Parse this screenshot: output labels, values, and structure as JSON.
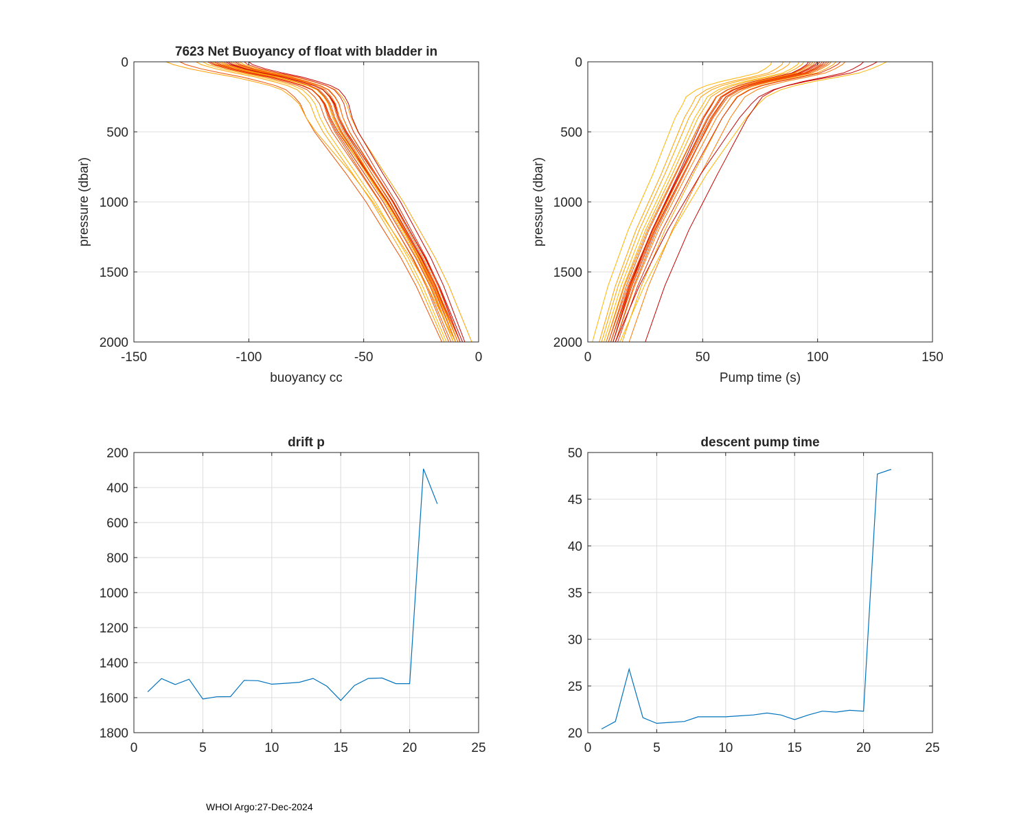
{
  "footer_text": "WHOI Argo:27-Dec-2024",
  "colors": {
    "series": "#0072bd",
    "profiles": [
      "#c80000",
      "#e62800",
      "#f05000",
      "#ff7800",
      "#ffa000",
      "#ffb400"
    ],
    "grid": "#dcdcdc",
    "axis": "#262626"
  },
  "chart_data": [
    {
      "id": "buoyancy",
      "type": "line",
      "title": "7623 Net Buoyancy of float with bladder in",
      "xlabel": "buoyancy cc",
      "ylabel": "pressure (dbar)",
      "xlim": [
        -150,
        0
      ],
      "ylim": [
        0,
        2000
      ],
      "y_reversed": true,
      "xticks": [
        -150,
        -100,
        -50,
        0
      ],
      "xtick_labels": [
        "-150",
        "-100",
        "-50",
        "0"
      ],
      "yticks": [
        0,
        500,
        1000,
        1500,
        2000
      ],
      "ytick_labels": [
        "0",
        "500",
        "1000",
        "1500",
        "2000"
      ],
      "grid": true,
      "pressure": [
        0,
        20,
        50,
        80,
        110,
        140,
        170,
        200,
        250,
        300,
        400,
        500,
        600,
        700,
        800,
        1000,
        1200,
        1400,
        1600,
        1800,
        2000
      ],
      "base_x": [
        -112,
        -110,
        -104,
        -96,
        -87,
        -80,
        -74,
        -70,
        -67,
        -65,
        -63,
        -60,
        -56,
        -52,
        -48,
        -40,
        -33,
        -26,
        -20,
        -15,
        -10
      ],
      "profiles": [
        {
          "dx": 0,
          "deep_dx": 0,
          "color_index": 0
        },
        {
          "dx": 3,
          "deep_dx": 1,
          "color_index": 0
        },
        {
          "dx": -3,
          "deep_dx": -1,
          "color_index": 1
        },
        {
          "dx": 6,
          "deep_dx": 2,
          "color_index": 1
        },
        {
          "dx": -6,
          "deep_dx": -2,
          "color_index": 2
        },
        {
          "dx": 1,
          "deep_dx": 0,
          "color_index": 2
        },
        {
          "dx": -1,
          "deep_dx": 1,
          "color_index": 3
        },
        {
          "dx": 4,
          "deep_dx": -1,
          "color_index": 3
        },
        {
          "dx": -4,
          "deep_dx": 1,
          "color_index": 4
        },
        {
          "dx": 8,
          "deep_dx": 7,
          "color_index": 4
        },
        {
          "dx": -8,
          "deep_dx": -4,
          "color_index": 5
        },
        {
          "dx": 2,
          "deep_dx": 3,
          "color_index": 0
        },
        {
          "dx": -2,
          "deep_dx": -3,
          "color_index": 2
        },
        {
          "dx": 10,
          "deep_dx": 2,
          "color_index": 1
        },
        {
          "dx": -11,
          "deep_dx": -5,
          "color_index": 4
        },
        {
          "dx": 5,
          "deep_dx": 0,
          "color_index": 3
        },
        {
          "dx": -5,
          "deep_dx": 2,
          "color_index": 1
        },
        {
          "dx": 0,
          "deep_dx": -1,
          "color_index": 5
        },
        {
          "dx": -18,
          "deep_dx": -6,
          "color_index": 2
        },
        {
          "dx": 12,
          "deep_dx": 4,
          "color_index": 0
        },
        {
          "dx": -24,
          "deep_dx": 0,
          "color_index": 4
        },
        {
          "dx": 7,
          "deep_dx": 1,
          "color_index": 3
        }
      ]
    },
    {
      "id": "pumptime",
      "type": "line",
      "title": "",
      "xlabel": "Pump time (s)",
      "ylabel": "pressure (dbar)",
      "xlim": [
        0,
        150
      ],
      "ylim": [
        0,
        2000
      ],
      "y_reversed": true,
      "xticks": [
        0,
        50,
        100,
        150
      ],
      "xtick_labels": [
        "0",
        "50",
        "100",
        "150"
      ],
      "yticks": [
        0,
        500,
        1000,
        1500,
        2000
      ],
      "ytick_labels": [
        "0",
        "500",
        "1000",
        "1500",
        "2000"
      ],
      "grid": true,
      "pressure": [
        0,
        20,
        50,
        80,
        110,
        140,
        170,
        200,
        250,
        300,
        400,
        500,
        600,
        700,
        800,
        1000,
        1200,
        1400,
        1600,
        1800,
        2000
      ],
      "base_x": [
        100,
        99,
        96,
        92,
        84,
        75,
        68,
        63,
        58,
        56,
        52,
        49,
        46,
        43,
        40,
        34,
        28,
        23,
        18,
        14,
        10
      ],
      "profiles": [
        {
          "dx": 0,
          "deep_dx": 0,
          "color_index": 0
        },
        {
          "dx": 3,
          "deep_dx": 1,
          "color_index": 1
        },
        {
          "dx": -3,
          "deep_dx": -1,
          "color_index": 2
        },
        {
          "dx": 6,
          "deep_dx": 2,
          "color_index": 3
        },
        {
          "dx": -6,
          "deep_dx": -2,
          "color_index": 4
        },
        {
          "dx": 1,
          "deep_dx": 0,
          "color_index": 1
        },
        {
          "dx": -1,
          "deep_dx": 1,
          "color_index": 3
        },
        {
          "dx": 4,
          "deep_dx": -1,
          "color_index": 2
        },
        {
          "dx": -4,
          "deep_dx": 1,
          "color_index": 0
        },
        {
          "dx": 8,
          "deep_dx": 5,
          "color_index": 4
        },
        {
          "dx": -8,
          "deep_dx": -3,
          "color_index": 5
        },
        {
          "dx": 2,
          "deep_dx": 2,
          "color_index": 2
        },
        {
          "dx": -2,
          "deep_dx": -2,
          "color_index": 3
        },
        {
          "dx": 10,
          "deep_dx": 3,
          "color_index": 1
        },
        {
          "dx": -12,
          "deep_dx": -4,
          "color_index": 4
        },
        {
          "dx": 5,
          "deep_dx": 0,
          "color_index": 2
        },
        {
          "dx": 30,
          "deep_dx": 4,
          "color_index": 5
        },
        {
          "dx": -15,
          "deep_dx": -5,
          "color_index": 4
        },
        {
          "dx": 20,
          "deep_dx": 15,
          "color_index": 0
        },
        {
          "dx": -20,
          "deep_dx": -8,
          "color_index": 5
        },
        {
          "dx": 12,
          "deep_dx": 8,
          "color_index": 3
        },
        {
          "dx": 26,
          "deep_dx": 2,
          "color_index": 0
        }
      ]
    },
    {
      "id": "driftp",
      "type": "line",
      "title": "drift p",
      "xlabel": "",
      "ylabel": "",
      "xlim": [
        0,
        25
      ],
      "ylim": [
        200,
        1800
      ],
      "y_reversed": true,
      "xticks": [
        0,
        5,
        10,
        15,
        20,
        25
      ],
      "xtick_labels": [
        "0",
        "5",
        "10",
        "15",
        "20",
        "25"
      ],
      "yticks": [
        200,
        400,
        600,
        800,
        1000,
        1200,
        1400,
        1600,
        1800
      ],
      "ytick_labels": [
        "200",
        "400",
        "600",
        "800",
        "1000",
        "1200",
        "1400",
        "1600",
        "1800"
      ],
      "grid": true,
      "x": [
        1,
        2,
        3,
        4,
        5,
        6,
        7,
        8,
        9,
        10,
        11,
        12,
        13,
        14,
        15,
        16,
        17,
        18,
        19,
        20,
        21,
        22
      ],
      "y": [
        1567,
        1491,
        1525,
        1495,
        1608,
        1595,
        1594,
        1501,
        1503,
        1523,
        1518,
        1512,
        1490,
        1535,
        1616,
        1530,
        1490,
        1488,
        1520,
        1520,
        293,
        493
      ]
    },
    {
      "id": "descentpump",
      "type": "line",
      "title": "descent pump time",
      "xlabel": "",
      "ylabel": "",
      "xlim": [
        0,
        25
      ],
      "ylim": [
        20,
        50
      ],
      "y_reversed": false,
      "xticks": [
        0,
        5,
        10,
        15,
        20,
        25
      ],
      "xtick_labels": [
        "0",
        "5",
        "10",
        "15",
        "20",
        "25"
      ],
      "yticks": [
        20,
        25,
        30,
        35,
        40,
        45,
        50
      ],
      "ytick_labels": [
        "20",
        "25",
        "30",
        "35",
        "40",
        "45",
        "50"
      ],
      "grid": true,
      "x": [
        1,
        2,
        3,
        4,
        5,
        6,
        7,
        8,
        9,
        10,
        11,
        12,
        13,
        14,
        15,
        16,
        17,
        18,
        19,
        20,
        21,
        22
      ],
      "y": [
        20.4,
        21.2,
        26.8,
        21.6,
        21.0,
        21.1,
        21.2,
        21.7,
        21.7,
        21.7,
        21.8,
        21.9,
        22.1,
        21.9,
        21.4,
        21.9,
        22.3,
        22.2,
        22.4,
        22.3,
        47.7,
        48.2
      ]
    }
  ]
}
